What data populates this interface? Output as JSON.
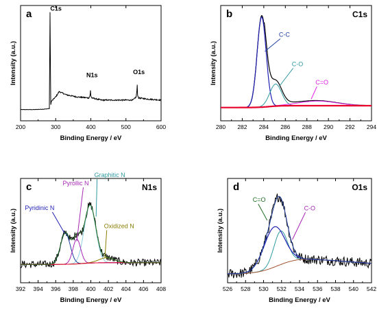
{
  "colors": {
    "axis": "#000000",
    "raw": "#000000",
    "blue": "#1f1fb4",
    "teal": "#2f9aa0",
    "magenta": "#e11ee8",
    "red": "#e8002a",
    "purple": "#a626b4",
    "green": "#1f6b1f",
    "olive": "#8a7d00",
    "brown": "#a0522d",
    "darkblue": "#1f3fa0",
    "lightblue": "#8ecfe0"
  },
  "chart_data": [
    {
      "panel": "a",
      "type": "line",
      "title": "",
      "xlabel": "Binding Energy / eV",
      "ylabel": "Intensity (a.u.)",
      "xlim": [
        200,
        600
      ],
      "xticks": [
        200,
        300,
        400,
        500,
        600
      ],
      "annotations": [
        {
          "text": "C1s",
          "x": 284.6
        },
        {
          "text": "N1s",
          "x": 399
        },
        {
          "text": "O1s",
          "x": 532
        }
      ],
      "series": [
        {
          "values_desc": "survey",
          "x": [
            200,
            240,
            270,
            282,
            284,
            285.5,
            288,
            300,
            310,
            330,
            360,
            395,
            398,
            399,
            400,
            403,
            430,
            470,
            520,
            529,
            531,
            532,
            533,
            536,
            560,
            600
          ],
          "y": [
            0.08,
            0.08,
            0.085,
            0.09,
            1.0,
            0.12,
            0.16,
            0.2,
            0.25,
            0.22,
            0.2,
            0.19,
            0.22,
            0.26,
            0.21,
            0.19,
            0.17,
            0.17,
            0.17,
            0.2,
            0.25,
            0.31,
            0.22,
            0.19,
            0.18,
            0.17
          ]
        }
      ]
    },
    {
      "panel": "b",
      "type": "line",
      "title": "C1s",
      "xlabel": "Binding Energy / eV",
      "ylabel": "Intensity (a.u.)",
      "xlim": [
        280,
        294
      ],
      "xticks": [
        280,
        282,
        284,
        286,
        288,
        290,
        292,
        294
      ],
      "peaks": [
        {
          "label": "C-C",
          "center": 283.8
        },
        {
          "label": "C-O",
          "center": 285.1
        },
        {
          "label": "C=O",
          "center": 289.0
        }
      ]
    },
    {
      "panel": "c",
      "type": "line",
      "title": "N1s",
      "xlabel": "Binding Energy / eV",
      "ylabel": "Intensity (a.u.)",
      "xlim": [
        392,
        408
      ],
      "xticks": [
        392,
        394,
        396,
        398,
        400,
        402,
        404,
        406,
        408
      ],
      "peaks": [
        {
          "label": "Pyridinic N",
          "center": 397.1
        },
        {
          "label": "Pyrollic N",
          "center": 398.4
        },
        {
          "label": "Graphitic N",
          "center": 399.9
        },
        {
          "label": "Oxidized N",
          "center": 401.8
        }
      ]
    },
    {
      "panel": "d",
      "type": "line",
      "title": "O1s",
      "xlabel": "Binding Energy / eV",
      "ylabel": "Intensity (a.u.)",
      "xlim": [
        526,
        542
      ],
      "xticks": [
        526,
        528,
        530,
        532,
        534,
        536,
        538,
        540,
        542
      ],
      "peaks": [
        {
          "label": "C=O",
          "center": 531.2
        },
        {
          "label": "C-O",
          "center": 531.9
        }
      ]
    }
  ]
}
